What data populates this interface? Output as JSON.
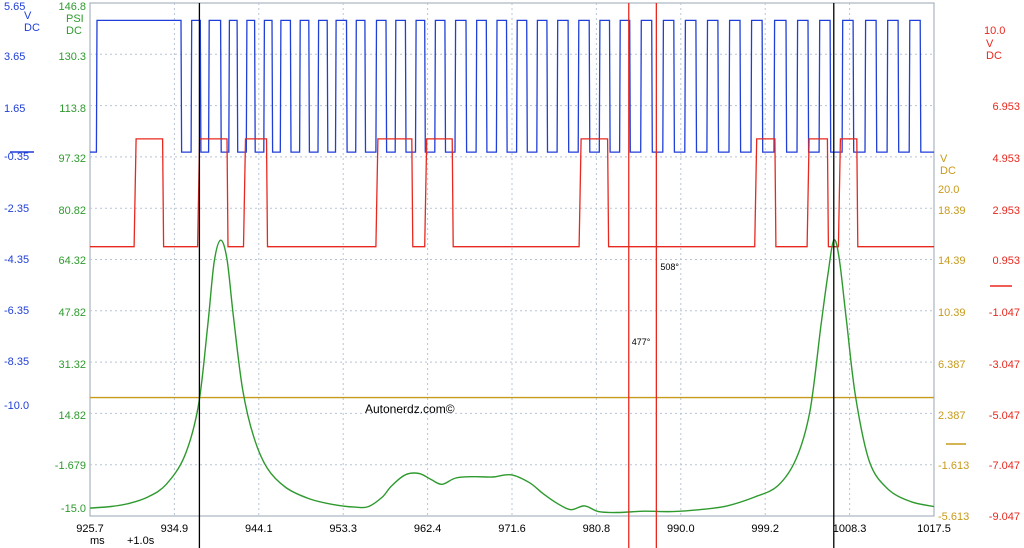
{
  "chart_data": {
    "type": "line",
    "title": "",
    "x": {
      "start": 925.7,
      "end": 1017.5,
      "ticks": [
        "925.7",
        "934.9",
        "944.1",
        "953.3",
        "962.4",
        "971.6",
        "980.8",
        "990.0",
        "999.2",
        "1008.3",
        "1017.5"
      ],
      "unit": "ms",
      "offset_label": "+1.0s"
    },
    "axes": [
      {
        "id": "blue",
        "side": "left",
        "unit_lines": [
          "V",
          "DC"
        ],
        "color": "#1f3fd8",
        "range": [
          -15.0,
          5.65
        ],
        "ticks": [
          "5.65",
          "3.65",
          "1.65",
          "-0.35",
          "-2.35",
          "-4.35",
          "-6.35",
          "-8.35",
          "-10.0"
        ]
      },
      {
        "id": "green",
        "side": "left",
        "unit_lines": [
          "PSI",
          "DC"
        ],
        "color": "#2e9a2e",
        "range": [
          -15.0,
          146.8
        ],
        "ticks": [
          "146.8",
          "130.3",
          "113.8",
          "97.32",
          "80.82",
          "64.32",
          "47.82",
          "31.32",
          "14.82",
          "-1.679",
          "-15.0"
        ]
      },
      {
        "id": "gold",
        "side": "right",
        "unit_lines": [
          "V",
          "DC"
        ],
        "color": "#c89a1a",
        "range": [
          -5.613,
          20.0
        ],
        "ticks": [
          "20.0",
          "18.39",
          "14.39",
          "10.39",
          "6.387",
          "2.387",
          "-1.613",
          "-5.613"
        ]
      },
      {
        "id": "red",
        "side": "right",
        "unit_lines": [
          "10.0",
          "V",
          "DC"
        ],
        "color": "#e8281e",
        "range": [
          -9.047,
          10.0
        ],
        "ticks": [
          "6.953",
          "4.953",
          "2.953",
          "0.953",
          "-1.047",
          "-3.047",
          "-5.047",
          "-7.047",
          "-9.047"
        ]
      }
    ],
    "series": [
      {
        "axis": "blue",
        "color": "#1f3fd8",
        "high": 4.95,
        "low": -0.35,
        "edges": [
          926.4,
          935.6,
          936.7,
          937.7,
          938.6,
          939.9,
          940.8,
          941.7,
          942.7,
          943.6,
          944.6,
          945.5,
          946.4,
          947.5,
          948.5,
          949.5,
          950.5,
          951.5,
          952.4,
          953.6,
          954.6,
          955.6,
          956.8,
          957.9,
          958.9,
          960.0,
          961.1,
          962.1,
          963.2,
          964.3,
          965.4,
          966.6,
          967.7,
          968.8,
          969.9,
          971.0,
          972.1,
          973.2,
          974.3,
          975.4,
          976.5,
          977.7,
          978.8,
          980.0,
          981.1,
          982.2,
          983.3,
          984.4,
          985.6,
          986.8,
          988.0,
          989.2,
          990.4,
          991.6,
          992.8,
          994.0,
          995.2,
          996.4,
          997.6,
          998.8,
          1000.1,
          1001.4,
          1002.6,
          1003.8,
          1005.0,
          1006.2,
          1007.5,
          1008.7,
          1010.0,
          1011.2,
          1012.4,
          1013.6,
          1014.8,
          1016.0
        ]
      },
      {
        "axis": "red",
        "color": "#e8281e",
        "high": 4.953,
        "low": 0.953,
        "pulses": [
          [
            930.5,
            933.6
          ],
          [
            937.4,
            940.6
          ],
          [
            942.4,
            944.9
          ],
          [
            956.8,
            960.7
          ],
          [
            962.1,
            965.1
          ],
          [
            978.9,
            982.0
          ],
          [
            998.0,
            1000.2
          ],
          [
            1003.7,
            1005.9
          ],
          [
            1007.1,
            1009.1
          ]
        ]
      },
      {
        "axis": "green",
        "color": "#2e9a2e",
        "x": [
          925.7,
          928.0,
          930.0,
          932.0,
          934.0,
          936.0,
          937.5,
          938.5,
          939.2,
          939.9,
          940.6,
          941.3,
          942.3,
          943.5,
          945.0,
          947.0,
          949.5,
          952.0,
          954.5,
          956.0,
          957.5,
          958.5,
          960.0,
          961.5,
          962.8,
          964.0,
          965.5,
          967.5,
          969.5,
          971.5,
          973.5,
          975.0,
          976.5,
          978.0,
          979.5,
          981.0,
          983.0,
          986.0,
          989.0,
          992.0,
          995.0,
          998.0,
          1000.5,
          1002.5,
          1004.0,
          1005.2,
          1006.0,
          1006.6,
          1007.2,
          1008.0,
          1009.0,
          1010.5,
          1012.5,
          1015.0,
          1017.5
        ],
        "y": [
          -12.5,
          -12.0,
          -11.0,
          -9.0,
          -5.0,
          4.0,
          20.0,
          45.0,
          65.0,
          72.0,
          66.0,
          48.0,
          25.0,
          10.0,
          0.0,
          -6.0,
          -9.5,
          -11.3,
          -12.2,
          -12.0,
          -9.0,
          -5.5,
          -2.0,
          -1.6,
          -3.5,
          -5.0,
          -3.0,
          -2.6,
          -2.7,
          -2.0,
          -4.5,
          -8.0,
          -11.0,
          -13.0,
          -11.8,
          -13.6,
          -13.9,
          -13.5,
          -13.6,
          -13.0,
          -11.8,
          -9.0,
          -5.5,
          3.0,
          18.0,
          45.0,
          62.0,
          72.0,
          66.0,
          46.0,
          22.0,
          2.0,
          -6.5,
          -10.5,
          -12.0
        ]
      },
      {
        "axis": "gold",
        "color": "#c89a1a",
        "y": 0.3
      }
    ],
    "cursors": [
      {
        "x": 937.6,
        "color": "#000000"
      },
      {
        "x": 1006.6,
        "color": "#000000"
      },
      {
        "x": 984.3,
        "color": "#e8281e",
        "label": "477°"
      },
      {
        "x": 987.3,
        "color": "#e8281e",
        "label": "508°"
      }
    ],
    "watermark": "Autonerdz.com©",
    "grid": true
  }
}
